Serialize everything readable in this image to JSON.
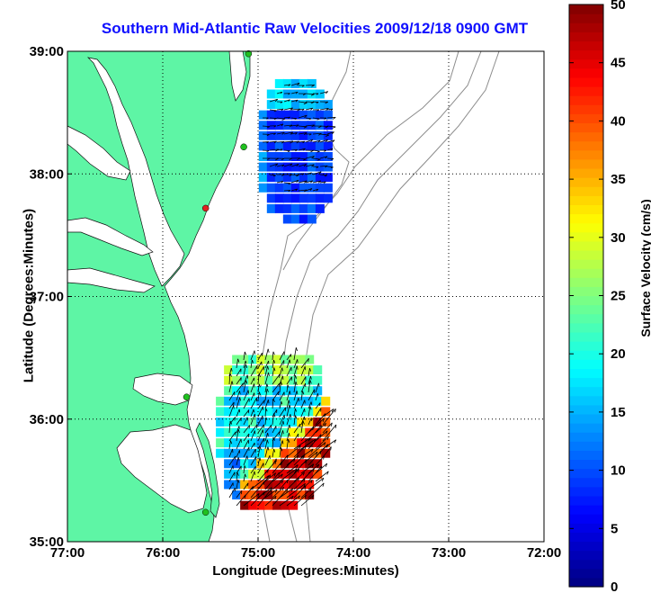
{
  "title": "Southern Mid-Atlantic Raw Velocities 2009/12/18 0900 GMT",
  "xlabel": "Longitude (Degrees:Minutes)",
  "ylabel": "Latitude (Degrees:Minutes)",
  "colorbar_label": "Surface Velocity (cm/s)",
  "x_ticks": [
    "77:00",
    "76:00",
    "75:00",
    "74:00",
    "73:00",
    "72:00"
  ],
  "y_ticks": [
    "39:00",
    "38:00",
    "37:00",
    "36:00",
    "35:00"
  ],
  "colorbar_ticks": [
    "0",
    "5",
    "10",
    "15",
    "20",
    "25",
    "30",
    "35",
    "40",
    "45",
    "50"
  ],
  "colors": {
    "land": "#5ef5a5",
    "title": "#1010ff",
    "contour": "#8c8c8c",
    "grid": "#000000"
  },
  "chart_data": {
    "type": "heatmap",
    "title": "Southern Mid-Atlantic Raw Velocities 2009/12/18 0900 GMT",
    "xlabel": "Longitude (Degrees:Minutes)",
    "ylabel": "Latitude (Degrees:Minutes)",
    "xlim": [
      -77,
      -72
    ],
    "ylim": [
      35,
      39
    ],
    "colorbar": {
      "label": "Surface Velocity (cm/s)",
      "range": [
        0,
        50
      ],
      "colormap": "jet"
    },
    "grid": true,
    "regions": [
      {
        "region": "north",
        "lon_range": [
          -74.95,
          -74.2
        ],
        "lat_range": [
          37.55,
          38.78
        ],
        "speed_range_cm_s": [
          7,
          20
        ]
      },
      {
        "region": "south",
        "lon_range": [
          -75.4,
          -74.1
        ],
        "lat_range": [
          35.3,
          36.55
        ],
        "speed_range_cm_s": [
          8,
          50
        ]
      }
    ],
    "stations": [
      {
        "lon": -75.1,
        "lat": 38.98,
        "color": "green"
      },
      {
        "lon": -75.15,
        "lat": 38.22,
        "color": "green"
      },
      {
        "lon": -75.55,
        "lat": 37.72,
        "color": "red"
      },
      {
        "lon": -75.75,
        "lat": 36.18,
        "color": "green"
      },
      {
        "lon": -75.55,
        "lat": 35.24,
        "color": "green"
      }
    ]
  }
}
